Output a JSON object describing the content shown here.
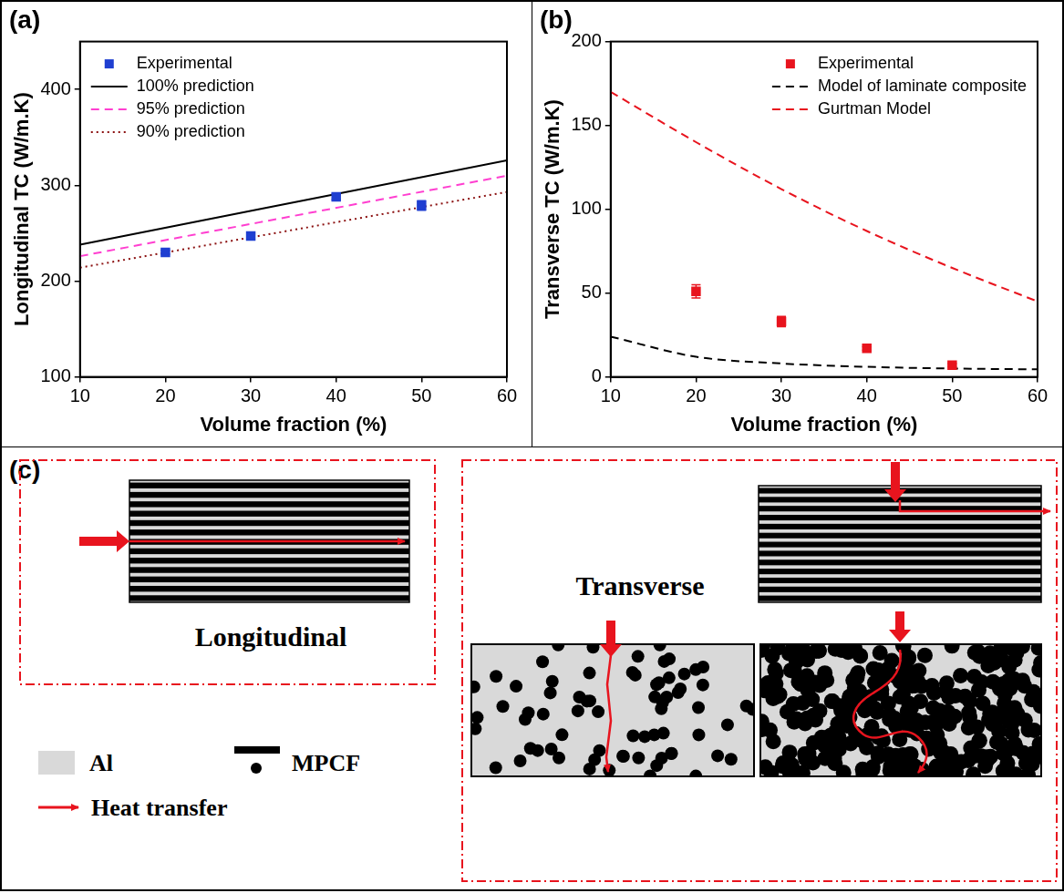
{
  "chart_data": [
    {
      "type": "line",
      "title": "(a)",
      "x_label": "Volume fraction (%)",
      "y_label": "Longitudinal TC (W/m.K)",
      "xlim": [
        10,
        60
      ],
      "xticks": [
        10,
        20,
        30,
        40,
        50,
        60
      ],
      "ylim": [
        100,
        450
      ],
      "yticks": [
        100,
        200,
        300,
        400
      ],
      "grid": false,
      "legend": "upper left",
      "series": [
        {
          "name": "Experimental",
          "type": "scatter",
          "marker": "square",
          "color": "#1f3fd1",
          "x": [
            20,
            30,
            40,
            50
          ],
          "values": [
            230,
            247,
            288,
            279
          ],
          "errors": [
            2,
            3,
            3,
            5
          ]
        },
        {
          "name": "100% prediction",
          "type": "line",
          "line_style": "solid",
          "color": "#000000",
          "x": [
            10,
            60
          ],
          "values": [
            238,
            326
          ]
        },
        {
          "name": "95% prediction",
          "type": "line",
          "line_style": "dashed",
          "color": "#ff3fd0",
          "x": [
            10,
            60
          ],
          "values": [
            226,
            310
          ]
        },
        {
          "name": "90% prediction",
          "type": "line",
          "line_style": "dotted",
          "color": "#8b1010",
          "x": [
            10,
            60
          ],
          "values": [
            214,
            293
          ]
        }
      ]
    },
    {
      "type": "line",
      "title": "(b)",
      "x_label": "Volume fraction (%)",
      "y_label": "Transverse TC (W/m.K)",
      "xlim": [
        10,
        60
      ],
      "xticks": [
        10,
        20,
        30,
        40,
        50,
        60
      ],
      "ylim": [
        0,
        200
      ],
      "yticks": [
        0,
        50,
        100,
        150,
        200
      ],
      "grid": false,
      "legend": "upper right",
      "series": [
        {
          "name": "Experimental",
          "type": "scatter",
          "marker": "square",
          "color": "#e8141e",
          "x": [
            20,
            30,
            40,
            50
          ],
          "values": [
            51,
            33,
            17,
            7
          ],
          "errors": [
            4,
            3,
            1,
            1
          ]
        },
        {
          "name": "Model of laminate composite",
          "type": "line",
          "line_style": "dashed",
          "color": "#000000",
          "x": [
            10,
            20,
            30,
            40,
            50,
            60
          ],
          "values": [
            24,
            12,
            8,
            6,
            5,
            4.5
          ]
        },
        {
          "name": "Gurtman Model",
          "type": "line",
          "line_style": "dashed",
          "color": "#e8141e",
          "x": [
            10,
            20,
            30,
            40,
            50,
            60
          ],
          "values": [
            170,
            140,
            112,
            87,
            65,
            45
          ]
        }
      ]
    }
  ],
  "diagram": {
    "panel": "(c)",
    "longitudinal_label": "Longitudinal",
    "transverse_label": "Transverse",
    "key": [
      {
        "label": "Al",
        "color": "#d9d9d9"
      },
      {
        "label": "MPCF",
        "color": "#000000"
      },
      {
        "label": "Heat transfer",
        "color": "#e8141e"
      }
    ]
  }
}
